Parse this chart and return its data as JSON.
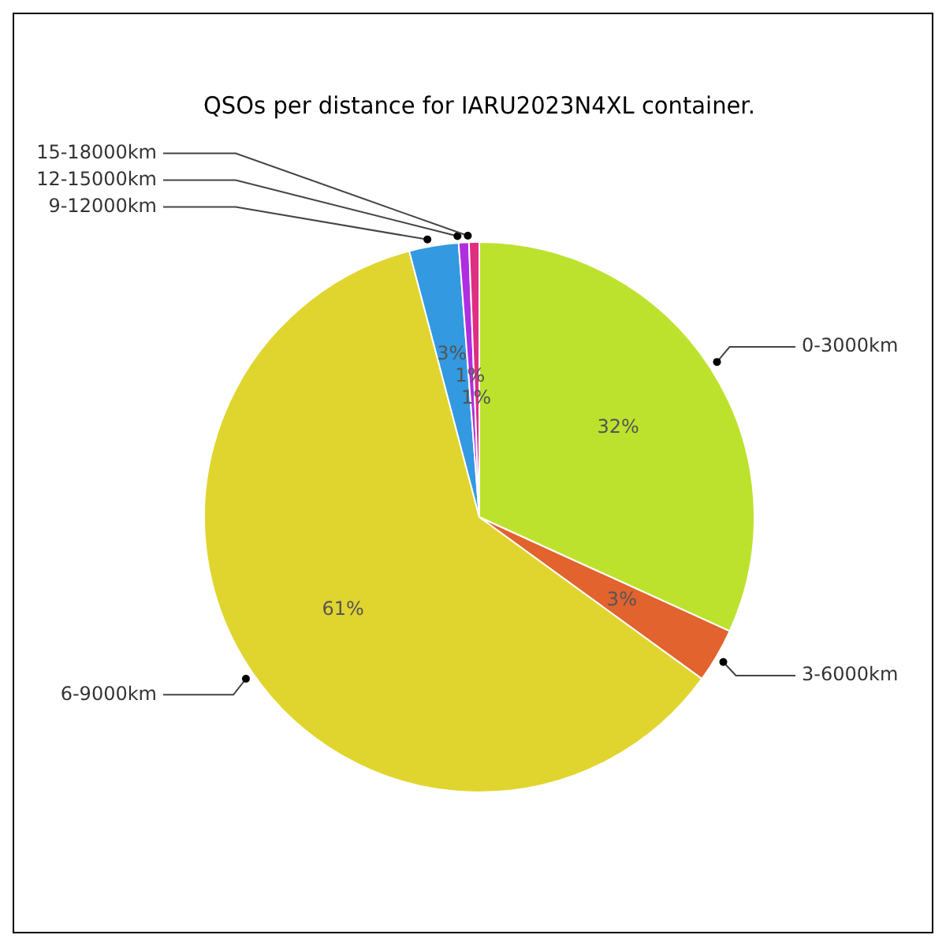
{
  "chart_data": {
    "type": "pie",
    "title": "QSOs per distance for IARU2023N4XL container.",
    "categories": [
      "0-3000km",
      "3-6000km",
      "6-9000km",
      "9-12000km",
      "12-15000km",
      "15-18000km"
    ],
    "values": [
      31.8,
      3.2,
      60.9,
      2.9,
      0.6,
      0.6
    ],
    "value_labels": [
      "32%",
      "3%",
      "61%",
      "3%",
      "1%",
      "1%"
    ],
    "colors": [
      "#bde22e",
      "#e2632e",
      "#e0d52e",
      "#3399e0",
      "#b02ee0",
      "#e02e80"
    ],
    "legend": false
  }
}
